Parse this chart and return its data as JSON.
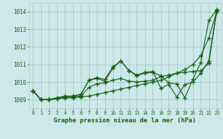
{
  "title": "Graphe pression niveau de la mer (hPa)",
  "bg_color": "#cce8e8",
  "grid_color": "#aacccc",
  "line_color": "#1a5c1a",
  "xlim": [
    -0.5,
    23.5
  ],
  "ylim": [
    1008.5,
    1014.5
  ],
  "xticks": [
    0,
    1,
    2,
    3,
    4,
    5,
    6,
    7,
    8,
    9,
    10,
    11,
    12,
    13,
    14,
    15,
    16,
    17,
    18,
    19,
    20,
    21,
    22,
    23
  ],
  "yticks": [
    1009,
    1010,
    1011,
    1012,
    1013,
    1014
  ],
  "s1_x": [
    0,
    1,
    2,
    3,
    4,
    5,
    6,
    7,
    8,
    9,
    10,
    11,
    12,
    13,
    14,
    15,
    16,
    17,
    18,
    19,
    20,
    21,
    22,
    23
  ],
  "s1_y": [
    1009.5,
    1009.0,
    1009.0,
    1009.05,
    1009.1,
    1009.1,
    1009.15,
    1009.2,
    1009.3,
    1009.4,
    1009.5,
    1009.6,
    1009.7,
    1009.8,
    1009.9,
    1010.0,
    1010.1,
    1010.3,
    1010.5,
    1010.7,
    1011.0,
    1011.5,
    1012.5,
    1014.0
  ],
  "s2_x": [
    0,
    1,
    2,
    3,
    4,
    5,
    6,
    7,
    8,
    9,
    10,
    11,
    12,
    13,
    14,
    15,
    16,
    17,
    18,
    19,
    20,
    21,
    22,
    23
  ],
  "s2_y": [
    1009.5,
    1009.0,
    1009.0,
    1009.05,
    1009.1,
    1009.15,
    1009.2,
    1009.7,
    1009.9,
    1009.95,
    1010.1,
    1010.2,
    1010.05,
    1010.0,
    1010.05,
    1010.1,
    1010.3,
    1010.4,
    1010.5,
    1010.55,
    1010.6,
    1010.65,
    1011.05,
    1014.05
  ],
  "s3_x": [
    0,
    1,
    2,
    3,
    4,
    5,
    6,
    7,
    8,
    9,
    10,
    11,
    12,
    13,
    14,
    15,
    16,
    17,
    18,
    19,
    20,
    21,
    22,
    23
  ],
  "s3_y": [
    1009.5,
    1009.0,
    1009.0,
    1009.1,
    1009.2,
    1009.2,
    1009.3,
    1010.1,
    1010.2,
    1010.05,
    1010.8,
    1011.2,
    1010.65,
    1010.35,
    1010.5,
    1010.55,
    1010.35,
    1009.95,
    1009.9,
    1009.1,
    1010.15,
    1011.1,
    1013.5,
    1014.1
  ],
  "s4_x": [
    0,
    1,
    2,
    3,
    4,
    5,
    6,
    7,
    8,
    9,
    10,
    11,
    12,
    13,
    14,
    15,
    16,
    17,
    18,
    19,
    20,
    21,
    22,
    23
  ],
  "s4_y": [
    1009.5,
    1009.0,
    1009.0,
    1009.1,
    1009.15,
    1009.2,
    1009.3,
    1010.1,
    1010.25,
    1010.15,
    1010.85,
    1011.2,
    1010.65,
    1010.4,
    1010.55,
    1010.6,
    1009.65,
    1009.85,
    1009.15,
    1009.85,
    1010.0,
    1010.5,
    1011.2,
    1014.1
  ]
}
